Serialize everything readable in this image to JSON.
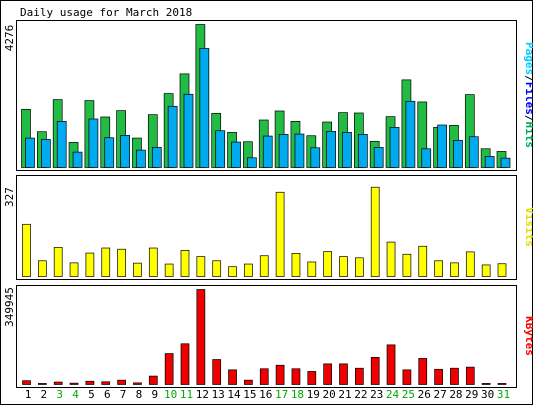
{
  "chart_data": {
    "type": "bar",
    "title": "Daily usage for March 2018",
    "days": [
      "1",
      "2",
      "3",
      "4",
      "5",
      "6",
      "7",
      "8",
      "9",
      "10",
      "11",
      "12",
      "13",
      "14",
      "15",
      "16",
      "17",
      "18",
      "19",
      "20",
      "21",
      "22",
      "23",
      "24",
      "25",
      "26",
      "27",
      "28",
      "29",
      "30",
      "31"
    ],
    "weekend_days": [
      "3",
      "4",
      "10",
      "11",
      "17",
      "18",
      "24",
      "25",
      "31"
    ],
    "panels": [
      {
        "id": "hits",
        "scale_label": "4276",
        "scale_max": 4276,
        "side_label": [
          {
            "text": "Pages",
            "color": "#00CCFF"
          },
          {
            "text": "/",
            "color": "#000000"
          },
          {
            "text": "Files",
            "color": "#0000FF"
          },
          {
            "text": "/",
            "color": "#000000"
          },
          {
            "text": "Hits",
            "color": "#00AA55"
          }
        ],
        "series": [
          {
            "name": "Hits",
            "color": "#22BB44",
            "values": [
              1740,
              1070,
              2030,
              750,
              2000,
              1510,
              1700,
              880,
              1580,
              2210,
              2800,
              4276,
              1620,
              1050,
              770,
              1420,
              1690,
              1380,
              950,
              1360,
              1640,
              1630,
              780,
              1520,
              2620,
              1960,
              1200,
              1260,
              2180,
              560,
              480
            ]
          },
          {
            "name": "Files",
            "color": "#00AAEE",
            "values": [
              880,
              840,
              1380,
              460,
              1450,
              890,
              960,
              520,
              600,
              1830,
              2190,
              3560,
              1100,
              760,
              290,
              940,
              990,
              1000,
              590,
              1080,
              1050,
              990,
              600,
              1200,
              1980,
              560,
              1270,
              810,
              920,
              330,
              280
            ]
          }
        ]
      },
      {
        "id": "visits",
        "scale_label": "327",
        "scale_max": 327,
        "side_label": [
          {
            "text": "Visits",
            "color": "#DDDD00"
          }
        ],
        "series": [
          {
            "name": "Visits",
            "color": "#FFFF00",
            "values": [
              176,
              53,
              98,
              46,
              79,
              96,
              92,
              45,
              96,
              42,
              88,
              67,
              53,
              33,
              42,
              70,
              284,
              78,
              49,
              84,
              67,
              63,
              301,
              116,
              75,
              102,
              53,
              46,
              83,
              39,
              43
            ]
          }
        ]
      },
      {
        "id": "kbytes",
        "scale_label": "349945",
        "scale_max": 349945,
        "side_label": [
          {
            "text": "KBytes",
            "color": "#FF0000"
          }
        ],
        "series": [
          {
            "name": "KBytes",
            "color": "#EE0000",
            "values": [
              14000,
              4000,
              9000,
              5000,
              12000,
              10000,
              16000,
              6000,
              31000,
              114000,
              150000,
              349945,
              92000,
              54000,
              16000,
              58000,
              71000,
              58000,
              48000,
              76000,
              76000,
              60000,
              100000,
              146000,
              54000,
              96000,
              56000,
              60000,
              64000,
              4000,
              4000
            ]
          }
        ]
      }
    ]
  }
}
